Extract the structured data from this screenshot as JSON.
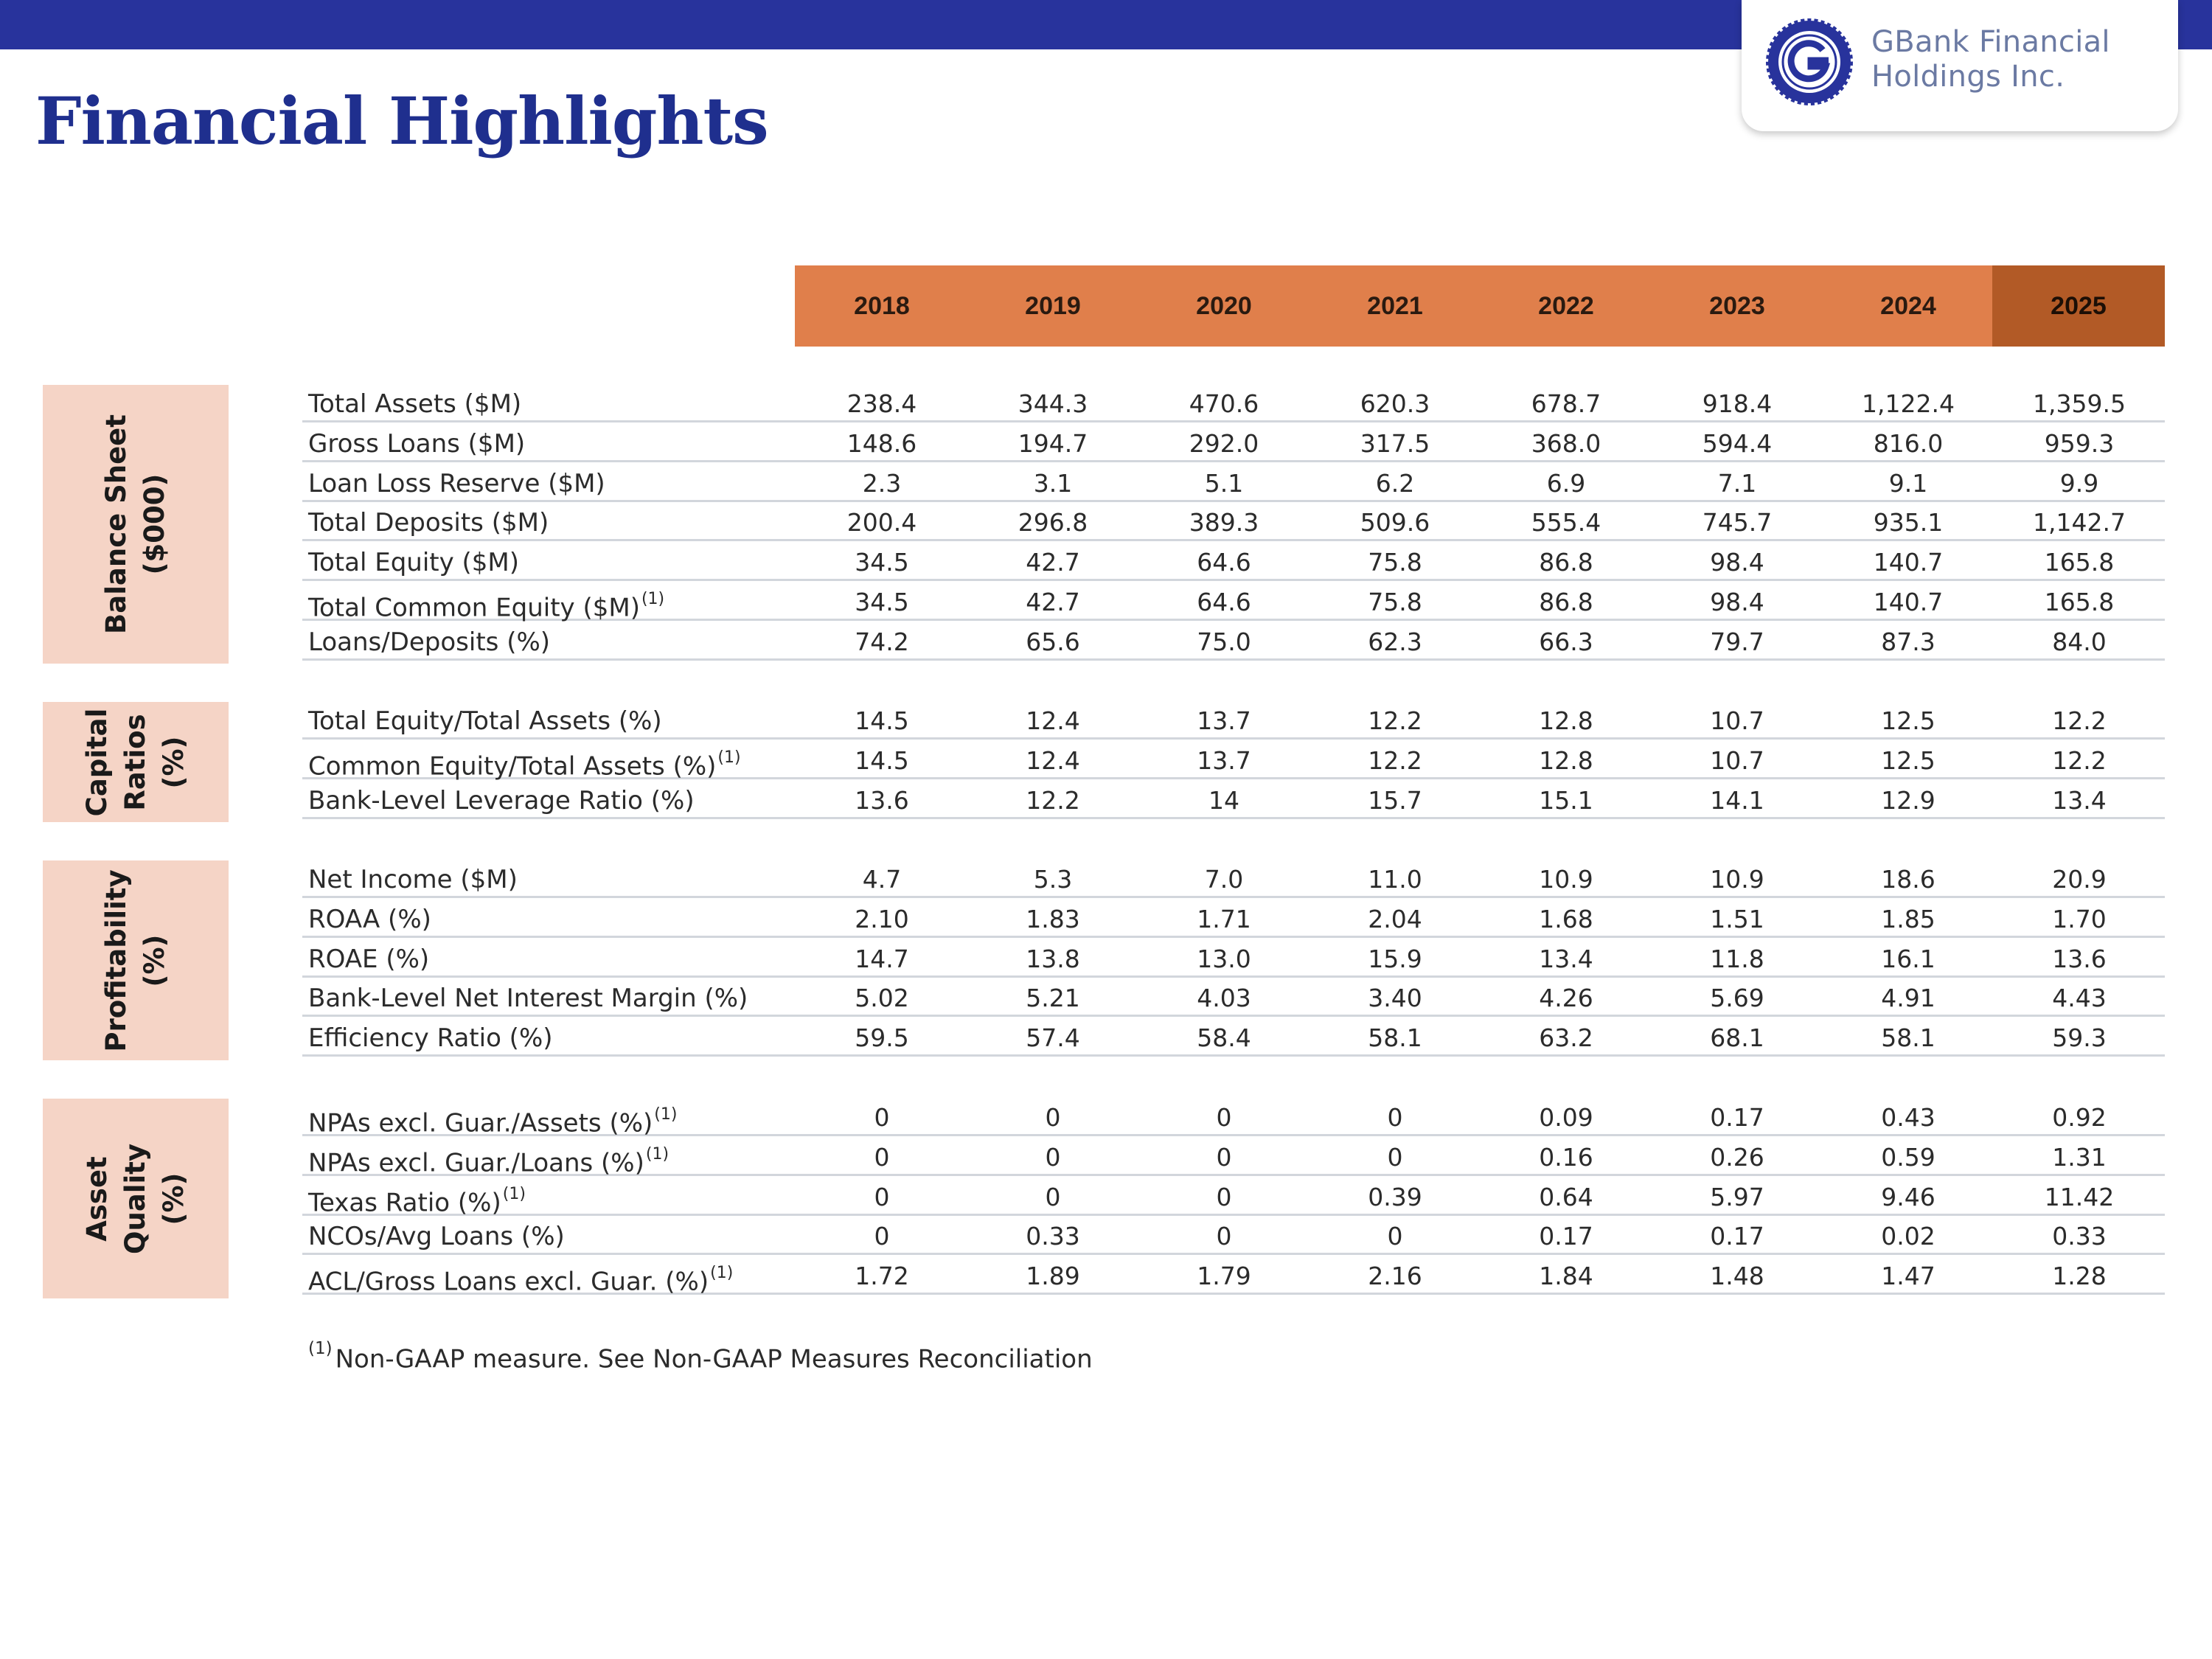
{
  "logo": {
    "line1": "GBank Financial",
    "line2": "Holdings Inc."
  },
  "title": "Financial Highlights",
  "years": [
    "2018",
    "2019",
    "2020",
    "2021",
    "2022",
    "2023",
    "2024",
    "2025"
  ],
  "footnote": {
    "marker": "(1)",
    "text": "Non-GAAP measure.  See Non-GAAP Measures Reconciliation"
  },
  "sections": [
    {
      "label_lines": [
        "Balance Sheet",
        "($000)"
      ],
      "rows": [
        {
          "label": "Total Assets ($M)",
          "footnote": "",
          "values": [
            "238.4",
            "344.3",
            "470.6",
            "620.3",
            "678.7",
            "918.4",
            "1,122.4",
            "1,359.5"
          ]
        },
        {
          "label": "Gross Loans ($M)",
          "footnote": "",
          "values": [
            "148.6",
            "194.7",
            "292.0",
            "317.5",
            "368.0",
            "594.4",
            "816.0",
            "959.3"
          ]
        },
        {
          "label": "Loan Loss Reserve ($M)",
          "footnote": "",
          "values": [
            "2.3",
            "3.1",
            "5.1",
            "6.2",
            "6.9",
            "7.1",
            "9.1",
            "9.9"
          ]
        },
        {
          "label": "Total Deposits ($M)",
          "footnote": "",
          "values": [
            "200.4",
            "296.8",
            "389.3",
            "509.6",
            "555.4",
            "745.7",
            "935.1",
            "1,142.7"
          ]
        },
        {
          "label": "Total Equity ($M)",
          "footnote": "",
          "values": [
            "34.5",
            "42.7",
            "64.6",
            "75.8",
            "86.8",
            "98.4",
            "140.7",
            "165.8"
          ]
        },
        {
          "label": "Total Common Equity ($M)",
          "footnote": "(1)",
          "values": [
            "34.5",
            "42.7",
            "64.6",
            "75.8",
            "86.8",
            "98.4",
            "140.7",
            "165.8"
          ]
        },
        {
          "label": "Loans/Deposits (%)",
          "footnote": "",
          "values": [
            "74.2",
            "65.6",
            "75.0",
            "62.3",
            "66.3",
            "79.7",
            "87.3",
            "84.0"
          ]
        }
      ]
    },
    {
      "label_lines": [
        "Capital",
        "Ratios",
        "(%)"
      ],
      "rows": [
        {
          "label": "Total Equity/Total Assets (%)",
          "footnote": "",
          "values": [
            "14.5",
            "12.4",
            "13.7",
            "12.2",
            "12.8",
            "10.7",
            "12.5",
            "12.2"
          ]
        },
        {
          "label": "Common Equity/Total Assets (%)",
          "footnote": "(1)",
          "values": [
            "14.5",
            "12.4",
            "13.7",
            "12.2",
            "12.8",
            "10.7",
            "12.5",
            "12.2"
          ]
        },
        {
          "label": "Bank-Level Leverage Ratio (%)",
          "footnote": "",
          "values": [
            "13.6",
            "12.2",
            "14",
            "15.7",
            "15.1",
            "14.1",
            "12.9",
            "13.4"
          ]
        }
      ]
    },
    {
      "label_lines": [
        "Profitability",
        "(%)"
      ],
      "rows": [
        {
          "label": "Net Income ($M)",
          "footnote": "",
          "values": [
            "4.7",
            "5.3",
            "7.0",
            "11.0",
            "10.9",
            "10.9",
            "18.6",
            "20.9"
          ]
        },
        {
          "label": "ROAA (%)",
          "footnote": "",
          "values": [
            "2.10",
            "1.83",
            "1.71",
            "2.04",
            "1.68",
            "1.51",
            "1.85",
            "1.70"
          ]
        },
        {
          "label": "ROAE (%)",
          "footnote": "",
          "values": [
            "14.7",
            "13.8",
            "13.0",
            "15.9",
            "13.4",
            "11.8",
            "16.1",
            "13.6"
          ]
        },
        {
          "label": "Bank-Level Net Interest Margin (%)",
          "footnote": "",
          "values": [
            "5.02",
            "5.21",
            "4.03",
            "3.40",
            "4.26",
            "5.69",
            "4.91",
            "4.43"
          ]
        },
        {
          "label": "Efficiency Ratio (%)",
          "footnote": "",
          "values": [
            "59.5",
            "57.4",
            "58.4",
            "58.1",
            "63.2",
            "68.1",
            "58.1",
            "59.3"
          ]
        }
      ]
    },
    {
      "label_lines": [
        "Asset",
        "Quality",
        "(%)"
      ],
      "rows": [
        {
          "label": "NPAs excl. Guar./Assets (%)",
          "footnote": "(1)",
          "values": [
            "0",
            "0",
            "0",
            "0",
            "0.09",
            "0.17",
            "0.43",
            "0.92"
          ]
        },
        {
          "label": "NPAs excl. Guar./Loans (%)",
          "footnote": "(1)",
          "values": [
            "0",
            "0",
            "0",
            "0",
            "0.16",
            "0.26",
            "0.59",
            "1.31"
          ]
        },
        {
          "label": "Texas Ratio (%)",
          "footnote": "(1)",
          "values": [
            "0",
            "0",
            "0",
            "0.39",
            "0.64",
            "5.97",
            "9.46",
            "11.42"
          ]
        },
        {
          "label": "NCOs/Avg Loans (%)",
          "footnote": "",
          "values": [
            "0",
            "0.33",
            "0",
            "0",
            "0.17",
            "0.17",
            "0.02",
            "0.33"
          ]
        },
        {
          "label": "ACL/Gross Loans excl. Guar. (%)",
          "footnote": "(1)",
          "values": [
            "1.72",
            "1.89",
            "1.79",
            "2.16",
            "1.84",
            "1.48",
            "1.47",
            "1.28"
          ]
        }
      ]
    }
  ]
}
